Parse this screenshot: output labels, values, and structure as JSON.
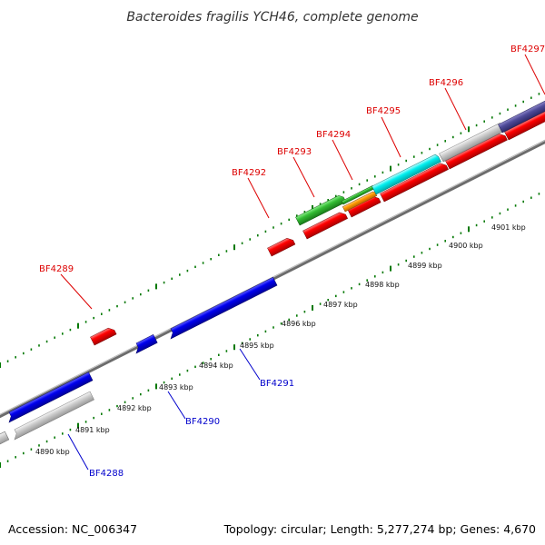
{
  "title": "Bacteroides fragilis YCH46, complete genome",
  "footer": {
    "accession": "Accession: NC_006347",
    "summary": "Topology: circular; Length: 5,277,274 bp; Genes: 4,670"
  },
  "colors": {
    "forward_label": "#dd0000",
    "reverse_label": "#0000cc",
    "backbone": "#888888",
    "tick": "#007700"
  },
  "scale": {
    "unit": "kbp",
    "labels": [
      "4890 kbp",
      "4891 kbp",
      "4892 kbp",
      "4893 kbp",
      "4894 kbp",
      "4895 kbp",
      "4896 kbp",
      "4897 kbp",
      "4898 kbp",
      "4899 kbp",
      "4900 kbp",
      "4901 kbp"
    ]
  },
  "forward_genes": [
    "BF4289",
    "BF4292",
    "BF4293",
    "BF4294",
    "BF4295",
    "BF4296",
    "BF4297"
  ],
  "reverse_genes": [
    "BF4288",
    "BF4290",
    "BF4291"
  ]
}
